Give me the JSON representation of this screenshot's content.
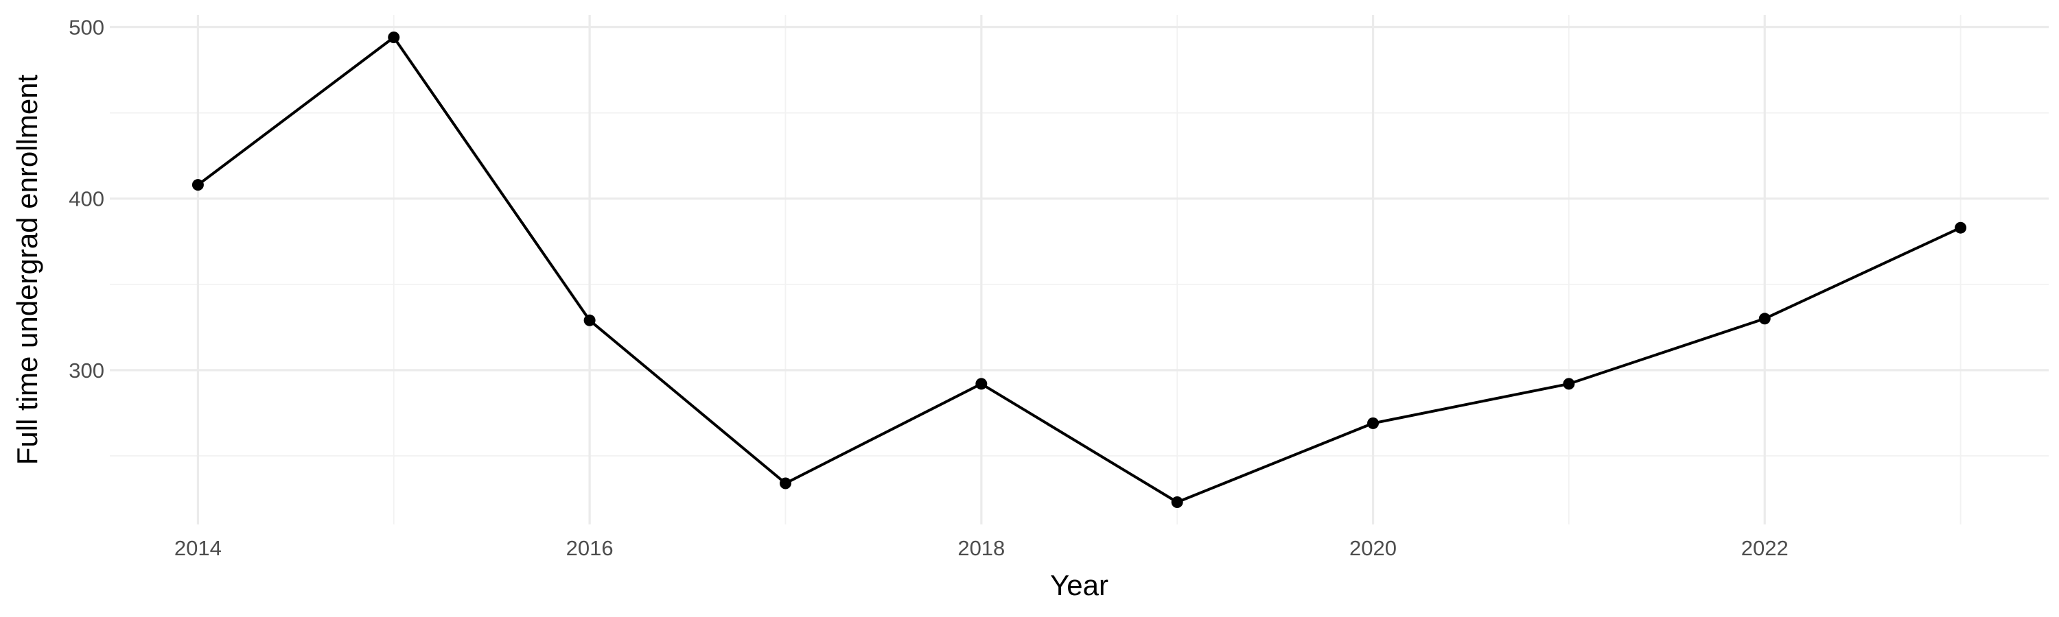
{
  "chart_data": {
    "type": "line",
    "title": "",
    "xlabel": "Year",
    "ylabel": "Full time undergrad enrollment",
    "x": [
      2014,
      2015,
      2016,
      2017,
      2018,
      2019,
      2020,
      2021,
      2022,
      2023
    ],
    "series": [
      {
        "values": [
          408,
          494,
          329,
          234,
          292,
          223,
          269,
          292,
          330,
          383
        ]
      }
    ],
    "xlim": [
      2013.55,
      2023.45
    ],
    "ylim": [
      210,
      507
    ],
    "x_ticks": [
      2014,
      2016,
      2018,
      2020,
      2022
    ],
    "x_minor_ticks": [
      2015,
      2017,
      2019,
      2021,
      2023
    ],
    "y_ticks": [
      300,
      400,
      500
    ],
    "y_minor_ticks": [
      250,
      350,
      450
    ],
    "grid": true,
    "legend": "none",
    "colors": {
      "line": "#000000",
      "point": "#000000",
      "grid": "#ebebeb",
      "tick_text": "#4d4d4d"
    }
  }
}
